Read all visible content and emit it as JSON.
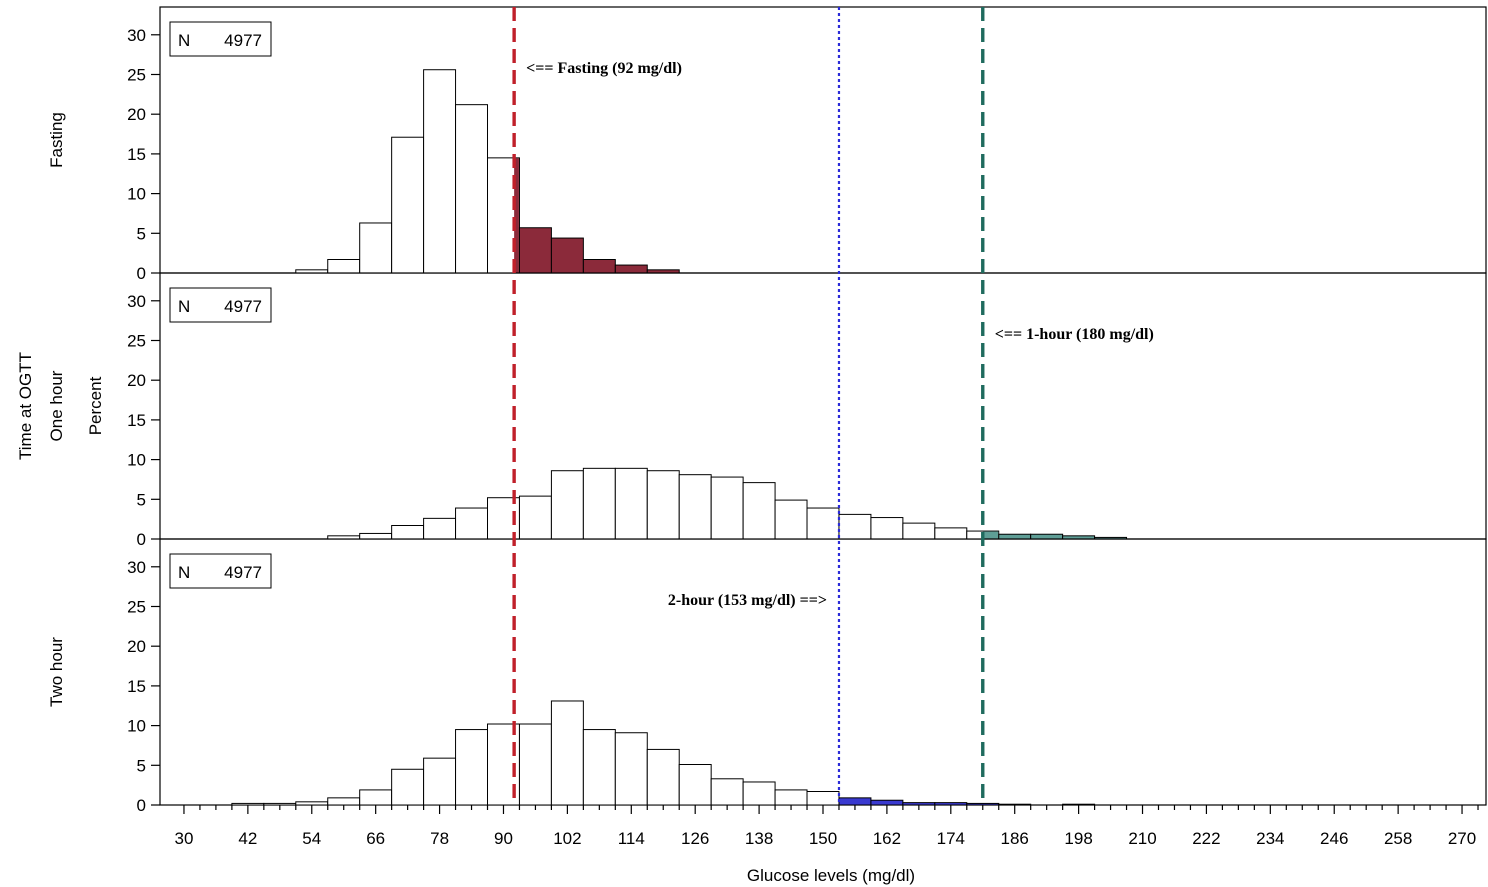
{
  "chart_data": {
    "type": "bar",
    "xlabel": "Glucose levels (mg/dl)",
    "ylabel": "Percent",
    "row_header": "Time at OGTT",
    "x_ticks": [
      30,
      42,
      54,
      66,
      78,
      90,
      102,
      114,
      126,
      138,
      150,
      162,
      174,
      186,
      198,
      210,
      222,
      234,
      246,
      258,
      270
    ],
    "x_range": [
      25.5,
      274.5
    ],
    "y_ticks": [
      0,
      5,
      10,
      15,
      20,
      25,
      30
    ],
    "ylim": [
      0,
      33.5
    ],
    "bin_width": 6,
    "colors": {
      "fasting_fill": "#8b2a3a",
      "one_hour_fill": "#5f9e96",
      "two_hour_fill": "#3a3ad0",
      "fasting_line": "#c0202a",
      "one_hour_line": "#1f6b5e",
      "two_hour_line": "#2b2bd8"
    },
    "panels": [
      {
        "name": "Fasting",
        "n_label": "N",
        "n_value": "4977",
        "bins": [
          {
            "x": 54,
            "v": 0.4
          },
          {
            "x": 60,
            "v": 1.7
          },
          {
            "x": 66,
            "v": 6.3
          },
          {
            "x": 72,
            "v": 17.1
          },
          {
            "x": 78,
            "v": 25.6
          },
          {
            "x": 84,
            "v": 21.2
          },
          {
            "x": 90,
            "v": 14.5
          },
          {
            "x": 96,
            "v": 5.7
          },
          {
            "x": 102,
            "v": 4.4
          },
          {
            "x": 108,
            "v": 1.7
          },
          {
            "x": 114,
            "v": 1.0
          },
          {
            "x": 120,
            "v": 0.4
          }
        ],
        "threshold": 92,
        "fill_key": "fasting_fill"
      },
      {
        "name": "One hour",
        "n_label": "N",
        "n_value": "4977",
        "bins": [
          {
            "x": 60,
            "v": 0.4
          },
          {
            "x": 66,
            "v": 0.7
          },
          {
            "x": 72,
            "v": 1.7
          },
          {
            "x": 78,
            "v": 2.6
          },
          {
            "x": 84,
            "v": 3.9
          },
          {
            "x": 90,
            "v": 5.2
          },
          {
            "x": 96,
            "v": 5.4
          },
          {
            "x": 102,
            "v": 8.6
          },
          {
            "x": 108,
            "v": 8.9
          },
          {
            "x": 114,
            "v": 8.9
          },
          {
            "x": 120,
            "v": 8.6
          },
          {
            "x": 126,
            "v": 8.1
          },
          {
            "x": 132,
            "v": 7.8
          },
          {
            "x": 138,
            "v": 7.1
          },
          {
            "x": 144,
            "v": 4.9
          },
          {
            "x": 150,
            "v": 3.9
          },
          {
            "x": 156,
            "v": 3.1
          },
          {
            "x": 162,
            "v": 2.7
          },
          {
            "x": 168,
            "v": 2.0
          },
          {
            "x": 174,
            "v": 1.4
          },
          {
            "x": 180,
            "v": 1.0
          },
          {
            "x": 186,
            "v": 0.6
          },
          {
            "x": 192,
            "v": 0.6
          },
          {
            "x": 198,
            "v": 0.4
          },
          {
            "x": 204,
            "v": 0.2
          }
        ],
        "threshold": 180,
        "fill_key": "one_hour_fill"
      },
      {
        "name": "Two hour",
        "n_label": "N",
        "n_value": "4977",
        "bins": [
          {
            "x": 42,
            "v": 0.2
          },
          {
            "x": 48,
            "v": 0.2
          },
          {
            "x": 54,
            "v": 0.4
          },
          {
            "x": 60,
            "v": 0.9
          },
          {
            "x": 66,
            "v": 1.9
          },
          {
            "x": 72,
            "v": 4.5
          },
          {
            "x": 78,
            "v": 5.9
          },
          {
            "x": 84,
            "v": 9.5
          },
          {
            "x": 90,
            "v": 10.2
          },
          {
            "x": 96,
            "v": 10.2
          },
          {
            "x": 102,
            "v": 13.1
          },
          {
            "x": 108,
            "v": 9.5
          },
          {
            "x": 114,
            "v": 9.1
          },
          {
            "x": 120,
            "v": 7.0
          },
          {
            "x": 126,
            "v": 5.1
          },
          {
            "x": 132,
            "v": 3.3
          },
          {
            "x": 138,
            "v": 2.9
          },
          {
            "x": 144,
            "v": 1.9
          },
          {
            "x": 150,
            "v": 1.7
          },
          {
            "x": 156,
            "v": 0.9
          },
          {
            "x": 162,
            "v": 0.6
          },
          {
            "x": 168,
            "v": 0.3
          },
          {
            "x": 174,
            "v": 0.3
          },
          {
            "x": 180,
            "v": 0.2
          },
          {
            "x": 186,
            "v": 0.1
          },
          {
            "x": 198,
            "v": 0.1
          }
        ],
        "threshold": 153,
        "fill_key": "two_hour_fill"
      }
    ],
    "reference_lines": [
      {
        "name": "fasting",
        "x": 92,
        "color_key": "fasting_line",
        "style": "dashed",
        "label": "<== Fasting (92 mg/dl)",
        "label_panel": 0,
        "label_side": "right"
      },
      {
        "name": "two-hour",
        "x": 153,
        "color_key": "two_hour_line",
        "style": "dotted",
        "label": "2-hour (153 mg/dl) ==>",
        "label_panel": 2,
        "label_side": "left"
      },
      {
        "name": "one-hour",
        "x": 180,
        "color_key": "one_hour_line",
        "style": "dashed",
        "label": "<== 1-hour (180 mg/dl)",
        "label_panel": 1,
        "label_side": "right"
      }
    ]
  }
}
